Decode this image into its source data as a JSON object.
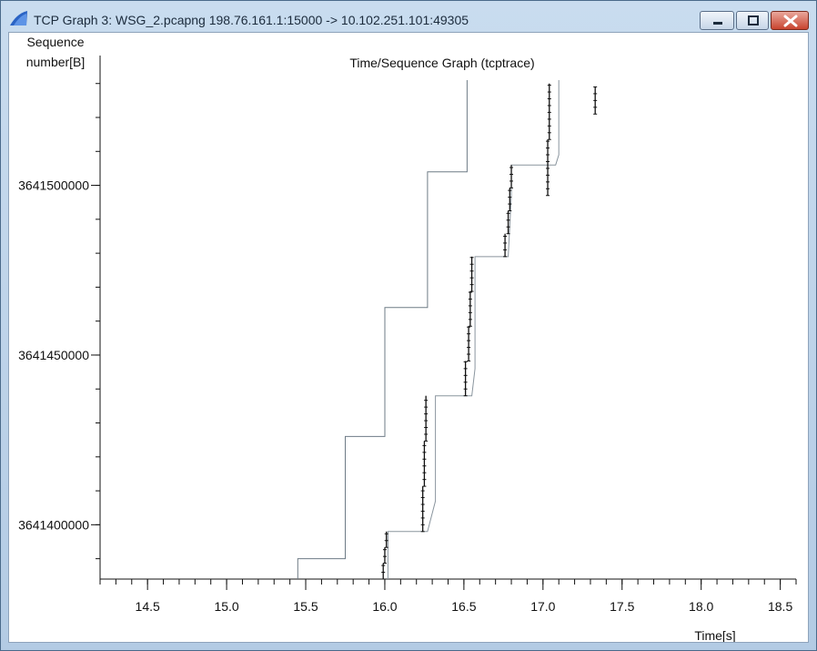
{
  "window": {
    "title": "TCP Graph 3: WSG_2.pcapng 198.76.161.1:15000 -> 10.102.251.101:49305",
    "icon": "wireshark-fin-icon",
    "buttons": [
      "minimize-icon",
      "maximize-icon",
      "close-icon"
    ]
  },
  "chart_data": {
    "type": "line",
    "title": "Time/Sequence Graph (tcptrace)",
    "xlabel": "Time[s]",
    "ylabel_line1": "Sequence",
    "ylabel_line2": "number[B]",
    "xlim": [
      14.2,
      18.6
    ],
    "ylim": [
      3641384000,
      3641531000
    ],
    "x_ticks": [
      14.5,
      15.0,
      15.5,
      16.0,
      16.5,
      17.0,
      17.5,
      18.0,
      18.5
    ],
    "x_tick_labels": [
      "14.5",
      "15.0",
      "15.5",
      "16.0",
      "16.5",
      "17.0",
      "17.5",
      "18.0",
      "18.5"
    ],
    "y_ticks": [
      3641400000,
      3641450000,
      3641500000
    ],
    "y_tick_labels": [
      "3641400000",
      "3641450000",
      "3641500000"
    ],
    "grid": false,
    "series": [
      {
        "role": "receive-window",
        "color": "#6e7b86",
        "x": [
          15.45,
          15.45,
          15.75,
          15.75,
          16.0,
          16.0,
          16.27,
          16.27,
          16.52,
          16.52
        ],
        "y": [
          3641384000,
          3641390000,
          3641390000,
          3641426000,
          3641426000,
          3641464000,
          3641464000,
          3641504000,
          3641504000,
          3641531000
        ]
      },
      {
        "role": "ack",
        "color": "#8a959e",
        "x": [
          16.02,
          16.02,
          16.27,
          16.32,
          16.32,
          16.55,
          16.57,
          16.57,
          16.78,
          16.8,
          16.8,
          17.08,
          17.1,
          17.1
        ],
        "y": [
          3641384000,
          3641398000,
          3641398000,
          3641407000,
          3641438000,
          3641438000,
          3641446000,
          3641479000,
          3641479000,
          3641497000,
          3641506000,
          3641506000,
          3641509000,
          3641531000
        ]
      },
      {
        "role": "data-segments",
        "color": "#111111",
        "bursts": [
          {
            "x": [
              15.99,
              16.0,
              16.01
            ],
            "y_start": 3641384000,
            "y_end": 3641398000
          },
          {
            "x": [
              16.24,
              16.25,
              16.26
            ],
            "y_start": 3641398000,
            "y_end": 3641438000
          },
          {
            "x": [
              16.51,
              16.53,
              16.54,
              16.55
            ],
            "y_start": 3641438000,
            "y_end": 3641479000
          },
          {
            "x": [
              16.76,
              16.78,
              16.79,
              16.8
            ],
            "y_start": 3641479000,
            "y_end": 3641506000
          },
          {
            "x": [
              17.03,
              17.04
            ],
            "y_start": 3641497000,
            "y_end": 3641530000
          },
          {
            "x": [
              17.33
            ],
            "y_start": 3641521000,
            "y_end": 3641529000
          }
        ]
      }
    ]
  }
}
